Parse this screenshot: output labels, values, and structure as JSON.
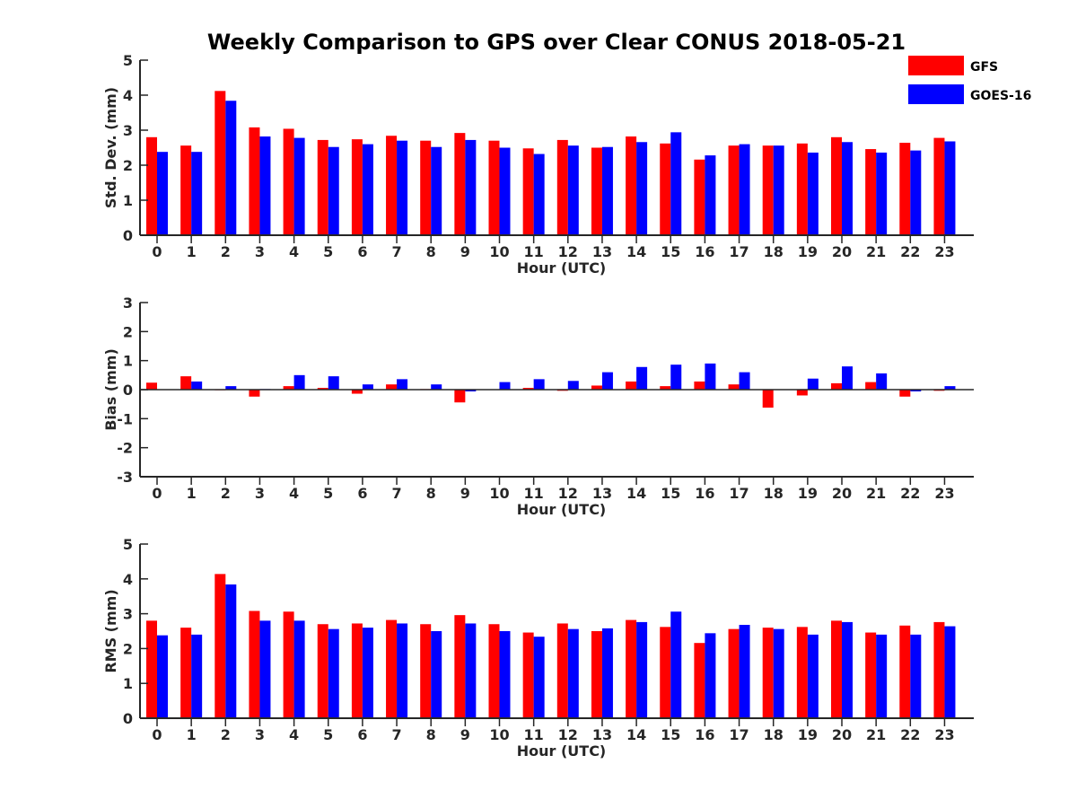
{
  "chart_data": [
    {
      "type": "bar",
      "id": "std",
      "title": "Weekly Comparison to GPS over Clear CONUS 2018-05-21",
      "xlabel": "Hour (UTC)",
      "ylabel": "Std. Dev. (mm)",
      "ylim": [
        0,
        5
      ],
      "yticks": [
        "0",
        "1",
        "2",
        "3",
        "4",
        "5"
      ],
      "categories": [
        "0",
        "1",
        "2",
        "3",
        "4",
        "5",
        "6",
        "7",
        "8",
        "9",
        "10",
        "11",
        "12",
        "13",
        "14",
        "15",
        "16",
        "17",
        "18",
        "19",
        "20",
        "21",
        "22",
        "23"
      ],
      "series": [
        {
          "name": "GFS",
          "color": "#ff0000",
          "values": [
            2.8,
            2.56,
            4.12,
            3.08,
            3.04,
            2.72,
            2.74,
            2.84,
            2.7,
            2.92,
            2.7,
            2.48,
            2.72,
            2.5,
            2.82,
            2.62,
            2.16,
            2.56,
            2.56,
            2.62,
            2.8,
            2.46,
            2.64,
            2.78
          ]
        },
        {
          "name": "GOES-16",
          "color": "#0000ff",
          "values": [
            2.38,
            2.38,
            3.84,
            2.82,
            2.78,
            2.52,
            2.6,
            2.7,
            2.52,
            2.72,
            2.5,
            2.32,
            2.56,
            2.52,
            2.66,
            2.94,
            2.28,
            2.6,
            2.56,
            2.36,
            2.66,
            2.36,
            2.42,
            2.68
          ]
        }
      ]
    },
    {
      "type": "bar",
      "id": "bias",
      "xlabel": "Hour (UTC)",
      "ylabel": "Bias (mm)",
      "ylim": [
        -3,
        3
      ],
      "yticks": [
        "-3",
        "-2",
        "-1",
        "0",
        "1",
        "2",
        "3"
      ],
      "categories": [
        "0",
        "1",
        "2",
        "3",
        "4",
        "5",
        "6",
        "7",
        "8",
        "9",
        "10",
        "11",
        "12",
        "13",
        "14",
        "15",
        "16",
        "17",
        "18",
        "19",
        "20",
        "21",
        "22",
        "23"
      ],
      "series": [
        {
          "name": "GFS",
          "color": "#ff0000",
          "values": [
            0.24,
            0.46,
            -0.02,
            -0.24,
            0.12,
            0.06,
            -0.14,
            0.18,
            0.02,
            -0.44,
            0.0,
            0.06,
            -0.04,
            0.14,
            0.28,
            0.12,
            0.28,
            0.18,
            -0.62,
            -0.2,
            0.22,
            0.26,
            -0.24,
            -0.04
          ]
        },
        {
          "name": "GOES-16",
          "color": "#0000ff",
          "values": [
            0.0,
            0.28,
            0.12,
            0.02,
            0.5,
            0.46,
            0.18,
            0.36,
            0.18,
            -0.06,
            0.26,
            0.36,
            0.3,
            0.6,
            0.78,
            0.86,
            0.9,
            0.6,
            0.0,
            0.38,
            0.8,
            0.56,
            -0.06,
            0.12
          ]
        }
      ]
    },
    {
      "type": "bar",
      "id": "rms",
      "xlabel": "Hour (UTC)",
      "ylabel": "RMS (mm)",
      "ylim": [
        0,
        5
      ],
      "yticks": [
        "0",
        "1",
        "2",
        "3",
        "4",
        "5"
      ],
      "categories": [
        "0",
        "1",
        "2",
        "3",
        "4",
        "5",
        "6",
        "7",
        "8",
        "9",
        "10",
        "11",
        "12",
        "13",
        "14",
        "15",
        "16",
        "17",
        "18",
        "19",
        "20",
        "21",
        "22",
        "23"
      ],
      "series": [
        {
          "name": "GFS",
          "color": "#ff0000",
          "values": [
            2.8,
            2.6,
            4.14,
            3.08,
            3.06,
            2.7,
            2.72,
            2.82,
            2.7,
            2.96,
            2.7,
            2.46,
            2.72,
            2.5,
            2.82,
            2.62,
            2.16,
            2.56,
            2.6,
            2.62,
            2.8,
            2.46,
            2.66,
            2.76
          ]
        },
        {
          "name": "GOES-16",
          "color": "#0000ff",
          "values": [
            2.38,
            2.4,
            3.84,
            2.8,
            2.8,
            2.56,
            2.6,
            2.72,
            2.5,
            2.72,
            2.5,
            2.34,
            2.56,
            2.58,
            2.76,
            3.06,
            2.44,
            2.68,
            2.56,
            2.4,
            2.76,
            2.4,
            2.4,
            2.64
          ]
        }
      ]
    }
  ],
  "legend": {
    "entries": [
      {
        "name": "GFS",
        "color": "#ff0000"
      },
      {
        "name": "GOES-16",
        "color": "#0000ff"
      }
    ]
  }
}
